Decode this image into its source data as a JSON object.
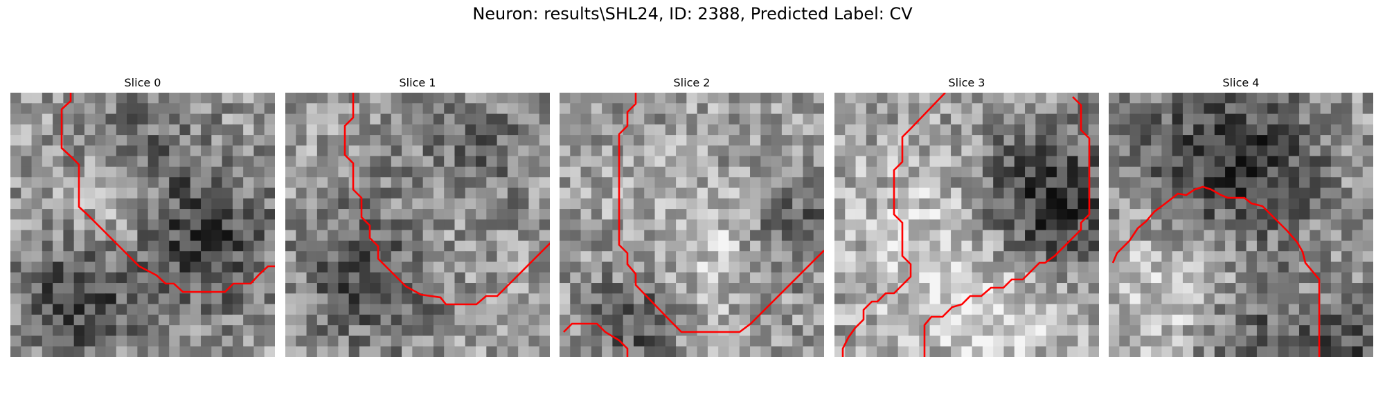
{
  "figure": {
    "title": "Neuron: results\\SHL24, ID: 2388, Predicted Label: CV"
  },
  "panels": [
    {
      "label": "Slice 0"
    },
    {
      "label": "Slice 1"
    },
    {
      "label": "Slice 2"
    },
    {
      "label": "Slice 3"
    },
    {
      "label": "Slice 4"
    }
  ],
  "colors": {
    "contour": "#ff0000",
    "background": "#ffffff"
  }
}
